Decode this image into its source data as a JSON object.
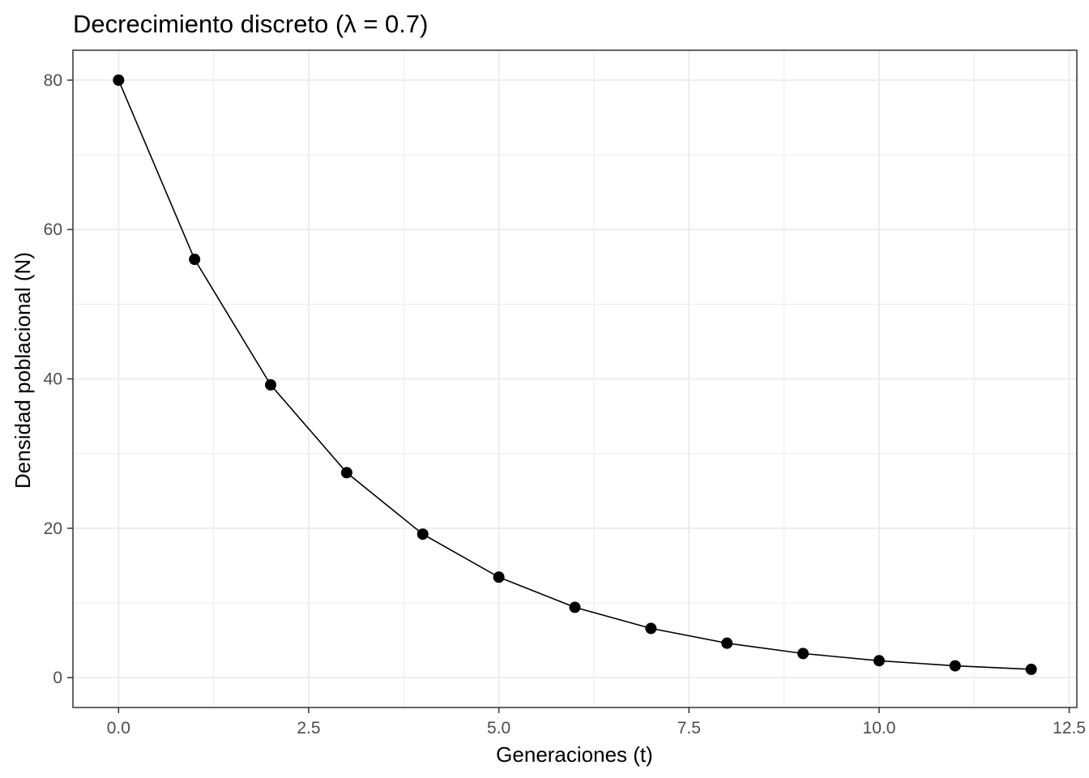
{
  "chart_data": {
    "type": "line",
    "title": "Decrecimiento discreto (λ = 0.7)",
    "xlabel": "Generaciones (t)",
    "ylabel": "Densidad poblacional (N)",
    "xlim": [
      -0.6,
      12.6
    ],
    "ylim": [
      -4.0,
      84.0
    ],
    "x_ticks": [
      0,
      2.5,
      5,
      7.5,
      10,
      12.5
    ],
    "x_tick_labels": [
      "0.0",
      "2.5",
      "5.0",
      "7.5",
      "10.0",
      "12.5"
    ],
    "y_ticks": [
      0,
      20,
      40,
      60,
      80
    ],
    "y_tick_labels": [
      "0",
      "20",
      "40",
      "60",
      "80"
    ],
    "grid": true,
    "markers": true,
    "series": [
      {
        "x": [
          0,
          1,
          2,
          3,
          4,
          5,
          6,
          7,
          8,
          9,
          10,
          11,
          12
        ],
        "values": [
          80,
          56,
          39.2,
          27.44,
          19.21,
          13.45,
          9.41,
          6.59,
          4.61,
          3.23,
          2.26,
          1.58,
          1.11
        ]
      }
    ],
    "colors": {
      "line": "#000000",
      "points": "#000000",
      "grid": "#ebebeb",
      "panel_border": "#333333",
      "tick_label": "#4d4d4d"
    }
  }
}
